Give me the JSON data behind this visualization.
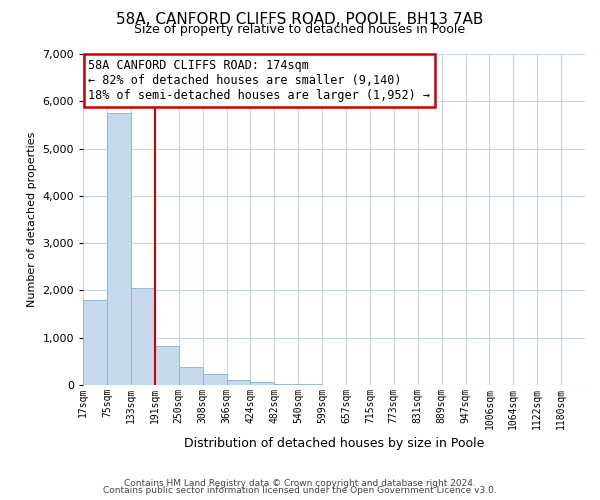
{
  "title": "58A, CANFORD CLIFFS ROAD, POOLE, BH13 7AB",
  "subtitle": "Size of property relative to detached houses in Poole",
  "xlabel": "Distribution of detached houses by size in Poole",
  "ylabel": "Number of detached properties",
  "bar_labels": [
    "17sqm",
    "75sqm",
    "133sqm",
    "191sqm",
    "250sqm",
    "308sqm",
    "366sqm",
    "424sqm",
    "482sqm",
    "540sqm",
    "599sqm",
    "657sqm",
    "715sqm",
    "773sqm",
    "831sqm",
    "889sqm",
    "947sqm",
    "1006sqm",
    "1064sqm",
    "1122sqm",
    "1180sqm"
  ],
  "bar_values": [
    1790,
    5750,
    2050,
    820,
    370,
    225,
    100,
    50,
    20,
    8,
    3,
    0,
    0,
    0,
    0,
    0,
    0,
    0,
    0,
    0,
    0
  ],
  "bar_color": "#c8d8ec",
  "bar_edge_color": "#8ab0d0",
  "vline_color": "#cc0000",
  "annotation_title": "58A CANFORD CLIFFS ROAD: 174sqm",
  "annotation_line1": "← 82% of detached houses are smaller (9,140)",
  "annotation_line2": "18% of semi-detached houses are larger (1,952) →",
  "annotation_box_color": "#ffffff",
  "annotation_box_edgecolor": "#cc0000",
  "ylim": [
    0,
    7000
  ],
  "yticks": [
    0,
    1000,
    2000,
    3000,
    4000,
    5000,
    6000,
    7000
  ],
  "footer1": "Contains HM Land Registry data © Crown copyright and database right 2024.",
  "footer2": "Contains public sector information licensed under the Open Government Licence v3.0.",
  "bg_color": "#ffffff",
  "grid_color": "#c8d4e0",
  "title_fontsize": 11,
  "subtitle_fontsize": 9
}
